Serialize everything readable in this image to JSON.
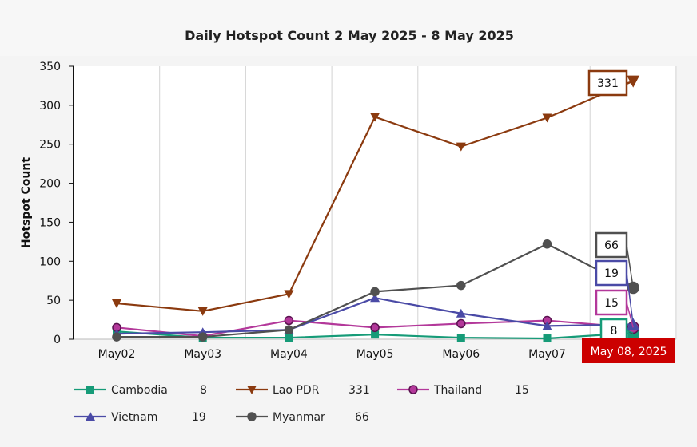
{
  "chart_data": {
    "type": "line",
    "title": "Daily Hotspot Count 2 May 2025 - 8 May 2025",
    "ylabel": "Hotspot Count",
    "xlabel": "",
    "categories": [
      "May02",
      "May03",
      "May04",
      "May05",
      "May06",
      "May07",
      "May08"
    ],
    "ylim": [
      0,
      350
    ],
    "yticks": [
      0,
      50,
      100,
      150,
      200,
      250,
      300,
      350
    ],
    "grid": "vertical",
    "highlight_label": "May 08, 2025",
    "series": [
      {
        "name": "Cambodia",
        "color": "#169b78",
        "marker": "square",
        "values": [
          10,
          2,
          2,
          6,
          2,
          1,
          8
        ],
        "last_label": "8"
      },
      {
        "name": "Lao PDR",
        "color": "#8b3a0f",
        "marker": "triangle-down",
        "values": [
          46,
          36,
          58,
          285,
          247,
          284,
          331
        ],
        "last_label": "331"
      },
      {
        "name": "Thailand",
        "color": "#b3389a",
        "marker": "circle",
        "values": [
          15,
          4,
          24,
          15,
          20,
          24,
          15
        ],
        "last_label": "15"
      },
      {
        "name": "Vietnam",
        "color": "#4a4aa6",
        "marker": "triangle-up",
        "values": [
          7,
          9,
          12,
          53,
          33,
          17,
          19
        ],
        "last_label": "19"
      },
      {
        "name": "Myanmar",
        "color": "#505050",
        "marker": "circle",
        "values": [
          3,
          3,
          12,
          61,
          69,
          122,
          66
        ],
        "last_label": "66"
      }
    ]
  }
}
